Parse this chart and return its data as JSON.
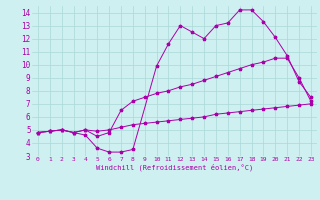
{
  "title": "",
  "xlabel": "Windchill (Refroidissement éolien,°C)",
  "bg_color": "#cff0f0",
  "grid_color": "#aad8d8",
  "line_color": "#aa00aa",
  "xlim": [
    -0.5,
    23.5
  ],
  "ylim": [
    3,
    14.5
  ],
  "xticks": [
    0,
    1,
    2,
    3,
    4,
    5,
    6,
    7,
    8,
    9,
    10,
    11,
    12,
    13,
    14,
    15,
    16,
    17,
    18,
    19,
    20,
    21,
    22,
    23
  ],
  "yticks": [
    3,
    4,
    5,
    6,
    7,
    8,
    9,
    10,
    11,
    12,
    13,
    14
  ],
  "line1_x": [
    0,
    1,
    2,
    3,
    4,
    5,
    6,
    7,
    8,
    10,
    11,
    12,
    13,
    14,
    15,
    16,
    17,
    18,
    19,
    20,
    21,
    22,
    23
  ],
  "line1_y": [
    4.8,
    4.9,
    5.0,
    4.8,
    4.6,
    3.6,
    3.3,
    3.3,
    3.5,
    9.9,
    11.6,
    13.0,
    12.5,
    12.0,
    13.0,
    13.2,
    14.2,
    14.2,
    13.3,
    12.1,
    10.7,
    8.7,
    7.5
  ],
  "line2_x": [
    0,
    1,
    2,
    3,
    4,
    5,
    6,
    7,
    8,
    9,
    10,
    11,
    12,
    13,
    14,
    15,
    16,
    17,
    18,
    19,
    20,
    21,
    22,
    23
  ],
  "line2_y": [
    4.8,
    4.9,
    5.0,
    4.8,
    5.0,
    4.5,
    4.8,
    6.5,
    7.2,
    7.5,
    7.8,
    8.0,
    8.3,
    8.5,
    8.8,
    9.1,
    9.4,
    9.7,
    10.0,
    10.2,
    10.5,
    10.5,
    9.0,
    7.2
  ],
  "line3_x": [
    0,
    1,
    2,
    3,
    4,
    5,
    6,
    7,
    8,
    9,
    10,
    11,
    12,
    13,
    14,
    15,
    16,
    17,
    18,
    19,
    20,
    21,
    22,
    23
  ],
  "line3_y": [
    4.8,
    4.9,
    5.0,
    4.8,
    5.0,
    4.9,
    5.0,
    5.2,
    5.4,
    5.5,
    5.6,
    5.7,
    5.8,
    5.9,
    6.0,
    6.2,
    6.3,
    6.4,
    6.5,
    6.6,
    6.7,
    6.8,
    6.9,
    7.0
  ]
}
